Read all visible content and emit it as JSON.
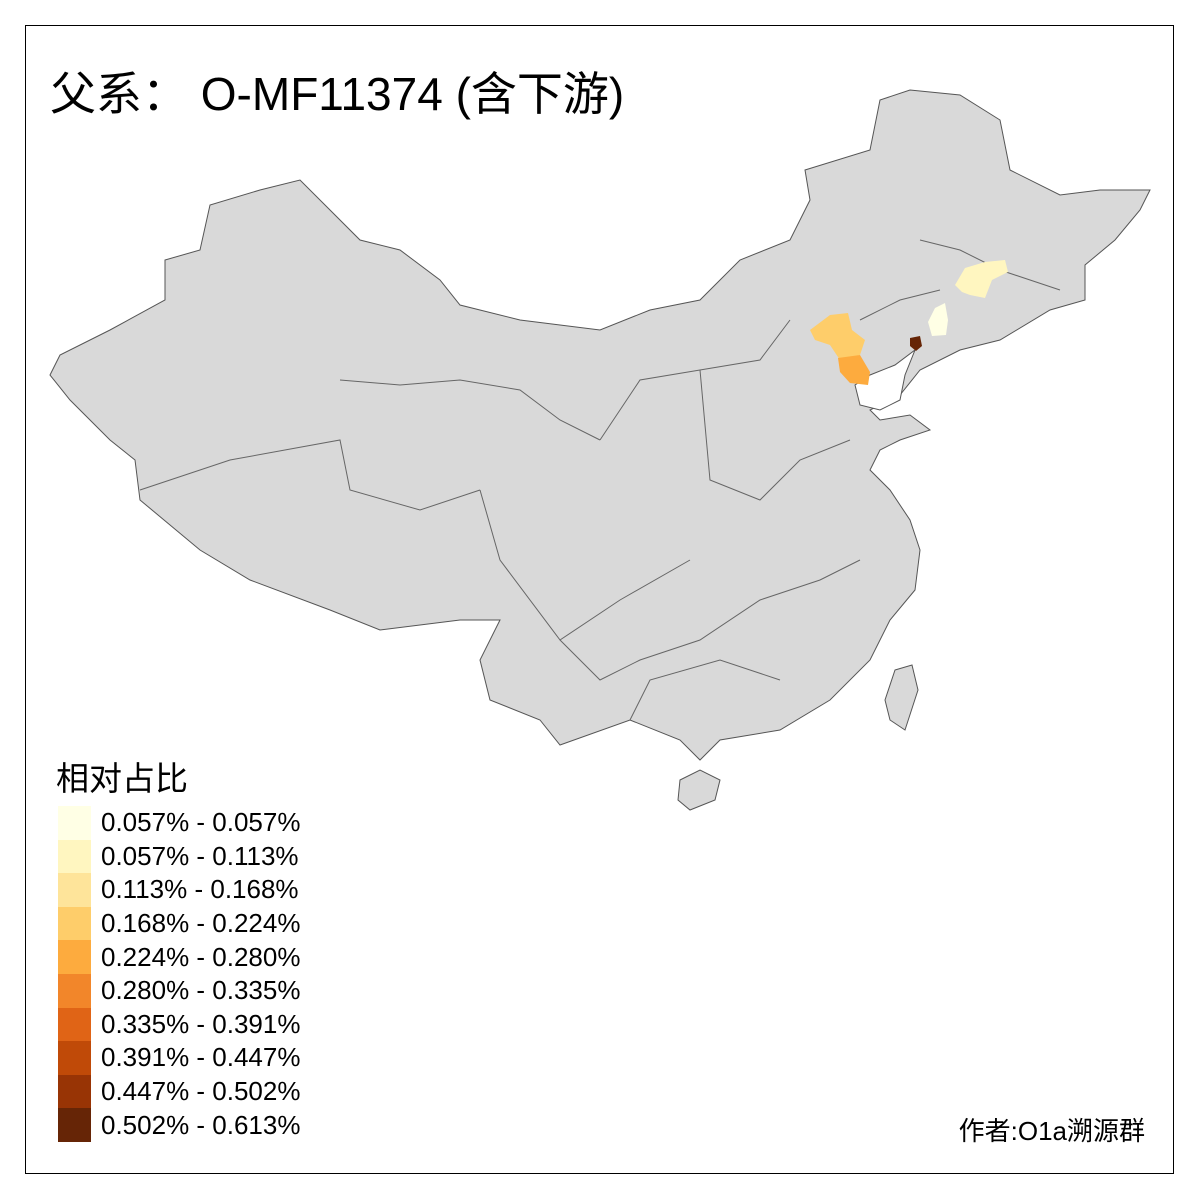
{
  "title": "父系： O-MF11374 (含下游)",
  "legend": {
    "title": "相对占比",
    "classes": [
      {
        "label": "0.057% - 0.057%",
        "color": "#FFFFE5"
      },
      {
        "label": "0.057% - 0.113%",
        "color": "#FFF6C0"
      },
      {
        "label": "0.113% - 0.168%",
        "color": "#FEE49A"
      },
      {
        "label": "0.168% - 0.224%",
        "color": "#FECD6A"
      },
      {
        "label": "0.224% - 0.280%",
        "color": "#FDAB3E"
      },
      {
        "label": "0.280% - 0.335%",
        "color": "#F2862A"
      },
      {
        "label": "0.335% - 0.391%",
        "color": "#E06416"
      },
      {
        "label": "0.391% - 0.447%",
        "color": "#C04A08"
      },
      {
        "label": "0.447% - 0.502%",
        "color": "#983405"
      },
      {
        "label": "0.502% - 0.613%",
        "color": "#662506"
      }
    ]
  },
  "map": {
    "base_color": "#D9D9D9",
    "border_color": "#555555",
    "highlighted_regions": [
      {
        "class": 3,
        "color": "#FECD6A"
      },
      {
        "class": 4,
        "color": "#FDAB3E"
      },
      {
        "class": 9,
        "color": "#662506"
      },
      {
        "class": 0,
        "color": "#FFFFE5"
      },
      {
        "class": 1,
        "color": "#FFF6C0"
      }
    ]
  },
  "author": "作者:O1a溯源群"
}
